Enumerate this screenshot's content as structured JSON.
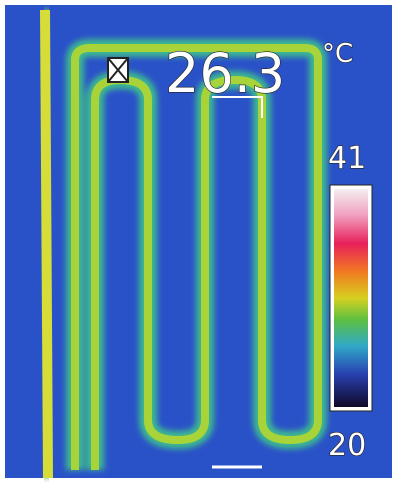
{
  "reading": {
    "value": "26.3",
    "unit": "°C"
  },
  "scale": {
    "max": "41",
    "min": "20"
  }
}
